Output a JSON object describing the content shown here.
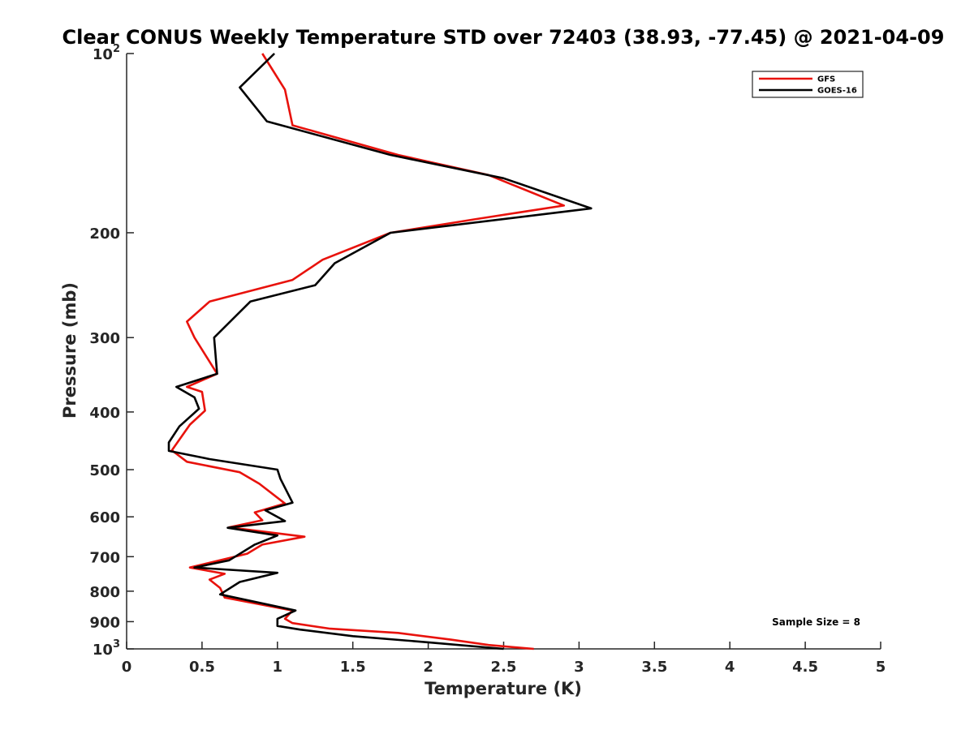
{
  "chart_data": {
    "type": "line",
    "title": "Clear CONUS Weekly Temperature STD over 72403 (38.93, -77.45) @ 2021-04-09",
    "xlabel": "Temperature (K)",
    "ylabel": "Pressure (mb)",
    "xlim": [
      0,
      5
    ],
    "ylim": [
      100,
      1000
    ],
    "y_scale": "log",
    "y_reversed": true,
    "grid": false,
    "legend": "top-right",
    "x_ticks": [
      {
        "v": 0,
        "label": "0"
      },
      {
        "v": 0.5,
        "label": "0.5"
      },
      {
        "v": 1,
        "label": "1"
      },
      {
        "v": 1.5,
        "label": "1.5"
      },
      {
        "v": 2,
        "label": "2"
      },
      {
        "v": 2.5,
        "label": "2.5"
      },
      {
        "v": 3,
        "label": "3"
      },
      {
        "v": 3.5,
        "label": "3.5"
      },
      {
        "v": 4,
        "label": "4"
      },
      {
        "v": 4.5,
        "label": "4.5"
      },
      {
        "v": 5,
        "label": "5"
      }
    ],
    "y_ticks": [
      {
        "v": 100,
        "base": "10",
        "exp": "2"
      },
      {
        "v": 200,
        "label": "200"
      },
      {
        "v": 300,
        "label": "300"
      },
      {
        "v": 400,
        "label": "400"
      },
      {
        "v": 500,
        "label": "500"
      },
      {
        "v": 600,
        "label": "600"
      },
      {
        "v": 700,
        "label": "700"
      },
      {
        "v": 800,
        "label": "800"
      },
      {
        "v": 900,
        "label": "900"
      },
      {
        "v": 1000,
        "base": "10",
        "exp": "3"
      }
    ],
    "annotation": "Sample Size = 8",
    "series": [
      {
        "name": "GFS",
        "color": "#e8120c",
        "points": [
          [
            0.9,
            100
          ],
          [
            1.05,
            115
          ],
          [
            1.1,
            132
          ],
          [
            1.8,
            148
          ],
          [
            2.4,
            160
          ],
          [
            2.9,
            180
          ],
          [
            2.3,
            190
          ],
          [
            1.75,
            200
          ],
          [
            1.3,
            222
          ],
          [
            1.1,
            240
          ],
          [
            0.55,
            261
          ],
          [
            0.4,
            282
          ],
          [
            0.45,
            300
          ],
          [
            0.6,
            345
          ],
          [
            0.4,
            363
          ],
          [
            0.5,
            370
          ],
          [
            0.52,
            398
          ],
          [
            0.42,
            420
          ],
          [
            0.3,
            464
          ],
          [
            0.4,
            485
          ],
          [
            0.75,
            505
          ],
          [
            0.88,
            528
          ],
          [
            1.05,
            570
          ],
          [
            0.85,
            590
          ],
          [
            0.9,
            608
          ],
          [
            0.68,
            625
          ],
          [
            1.18,
            648
          ],
          [
            0.9,
            668
          ],
          [
            0.8,
            692
          ],
          [
            0.42,
            730
          ],
          [
            0.65,
            748
          ],
          [
            0.55,
            765
          ],
          [
            0.62,
            790
          ],
          [
            0.65,
            820
          ],
          [
            1.1,
            862
          ],
          [
            1.05,
            890
          ],
          [
            1.1,
            905
          ],
          [
            1.35,
            925
          ],
          [
            1.8,
            940
          ],
          [
            2.15,
            965
          ],
          [
            2.4,
            985
          ],
          [
            2.7,
            1000
          ]
        ]
      },
      {
        "name": "GOES-16",
        "color": "#000000",
        "points": [
          [
            0.98,
            100
          ],
          [
            0.75,
            114
          ],
          [
            0.93,
            130
          ],
          [
            1.75,
            148
          ],
          [
            2.5,
            162
          ],
          [
            3.08,
            182
          ],
          [
            1.75,
            200
          ],
          [
            1.38,
            225
          ],
          [
            1.25,
            245
          ],
          [
            0.82,
            261
          ],
          [
            0.58,
            300
          ],
          [
            0.6,
            345
          ],
          [
            0.33,
            363
          ],
          [
            0.45,
            378
          ],
          [
            0.48,
            395
          ],
          [
            0.35,
            423
          ],
          [
            0.28,
            450
          ],
          [
            0.28,
            465
          ],
          [
            0.55,
            480
          ],
          [
            1.0,
            500
          ],
          [
            1.02,
            518
          ],
          [
            1.1,
            568
          ],
          [
            0.92,
            585
          ],
          [
            1.05,
            610
          ],
          [
            0.67,
            626
          ],
          [
            1.0,
            645
          ],
          [
            0.85,
            668
          ],
          [
            0.68,
            710
          ],
          [
            0.45,
            730
          ],
          [
            1.0,
            745
          ],
          [
            0.75,
            772
          ],
          [
            0.62,
            810
          ],
          [
            1.12,
            862
          ],
          [
            1.0,
            890
          ],
          [
            1.0,
            915
          ],
          [
            1.15,
            928
          ],
          [
            1.5,
            952
          ],
          [
            2.0,
            975
          ],
          [
            2.5,
            1000
          ]
        ]
      }
    ]
  }
}
